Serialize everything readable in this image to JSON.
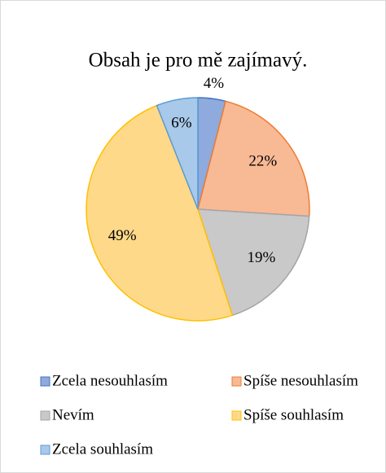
{
  "chart_data": {
    "type": "pie",
    "title": "Obsah je pro mě zajímavý.",
    "categories": [
      "Zcela nesouhlasím",
      "Spíše nesouhlasím",
      "Nevím",
      "Spíše souhlasím",
      "Zcela souhlasím"
    ],
    "values": [
      4,
      22,
      19,
      49,
      6
    ],
    "value_labels": [
      "4%",
      "22%",
      "19%",
      "49%",
      "6%"
    ],
    "colors": [
      "#8faadc",
      "#f8b995",
      "#c9c9c9",
      "#ffd98a",
      "#a9c9ea"
    ],
    "edge_colors": [
      "#4472c4",
      "#ed7d31",
      "#a5a5a5",
      "#ffc000",
      "#5b9bd5"
    ],
    "legend": "bottom"
  }
}
